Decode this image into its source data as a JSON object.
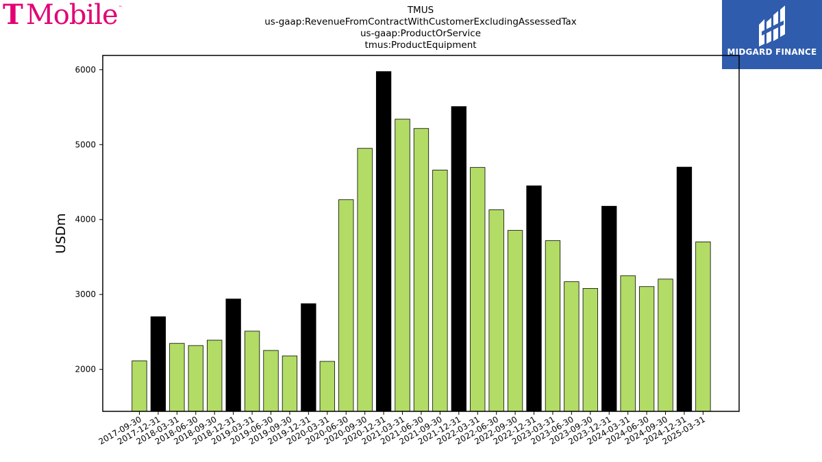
{
  "logos": {
    "left": {
      "text": "Mobile",
      "glyph": "T",
      "mark": "™",
      "color": "#e20074"
    },
    "right": {
      "text": "MIDGARD FINANCE",
      "background": "#2f5cad"
    }
  },
  "chart_data": {
    "type": "bar",
    "title_lines": [
      "TMUS",
      "us-gaap:RevenueFromContractWithCustomerExcludingAssessedTax",
      "us-gaap:ProductOrService",
      "tmus:ProductEquipment"
    ],
    "xlabel": "",
    "ylabel": "USDm",
    "ylim": [
      1440,
      6190
    ],
    "yticks": [
      2000,
      3000,
      4000,
      5000,
      6000
    ],
    "grid": false,
    "legend": "none",
    "colors": {
      "quarter": "#b2dc65",
      "year_end": "#000000",
      "edge": "#000000"
    },
    "categories": [
      "2017-09-30",
      "2017-12-31",
      "2018-03-31",
      "2018-06-30",
      "2018-09-30",
      "2018-12-31",
      "2019-03-31",
      "2019-06-30",
      "2019-09-30",
      "2019-12-31",
      "2020-03-31",
      "2020-06-30",
      "2020-09-30",
      "2020-12-31",
      "2021-03-31",
      "2021-06-30",
      "2021-09-30",
      "2021-12-31",
      "2022-03-31",
      "2022-06-30",
      "2022-09-30",
      "2022-12-31",
      "2023-03-31",
      "2023-06-30",
      "2023-09-30",
      "2023-12-31",
      "2024-03-31",
      "2024-06-30",
      "2024-09-30",
      "2024-12-31",
      "2025-03-31"
    ],
    "values": [
      2115,
      2703,
      2347,
      2318,
      2390,
      2940,
      2510,
      2253,
      2180,
      2877,
      2107,
      4265,
      4950,
      5975,
      5340,
      5215,
      4660,
      5508,
      4695,
      4130,
      3855,
      4450,
      3718,
      3170,
      3080,
      4178,
      3250,
      3105,
      3205,
      4700,
      3702
    ],
    "year_end": [
      false,
      true,
      false,
      false,
      false,
      true,
      false,
      false,
      false,
      true,
      false,
      false,
      false,
      true,
      false,
      false,
      false,
      true,
      false,
      false,
      false,
      true,
      false,
      false,
      false,
      true,
      false,
      false,
      false,
      true,
      false
    ]
  }
}
